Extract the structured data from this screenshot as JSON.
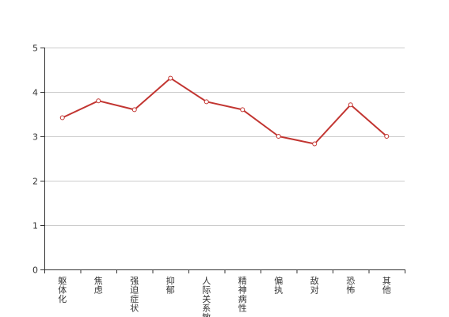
{
  "chart_data": {
    "type": "line",
    "title": "",
    "xlabel": "",
    "ylabel": "",
    "categories": [
      "躯体化",
      "焦虑",
      "强迫症状",
      "抑郁",
      "人际关系敏感",
      "精神病性",
      "偏执",
      "敌对",
      "恐怖",
      "其他"
    ],
    "series": [
      {
        "values": [
          3.42,
          3.8,
          3.6,
          4.31,
          3.78,
          3.6,
          3.0,
          2.83,
          3.71,
          3.0
        ]
      }
    ],
    "ylim": [
      0,
      5
    ],
    "yticks": [
      "0",
      "1",
      "2",
      "3",
      "4",
      "5"
    ],
    "grid": true,
    "legend": "none",
    "colors": {
      "line": "#c23531",
      "grid": "#cccccc",
      "axis": "#333333"
    }
  }
}
